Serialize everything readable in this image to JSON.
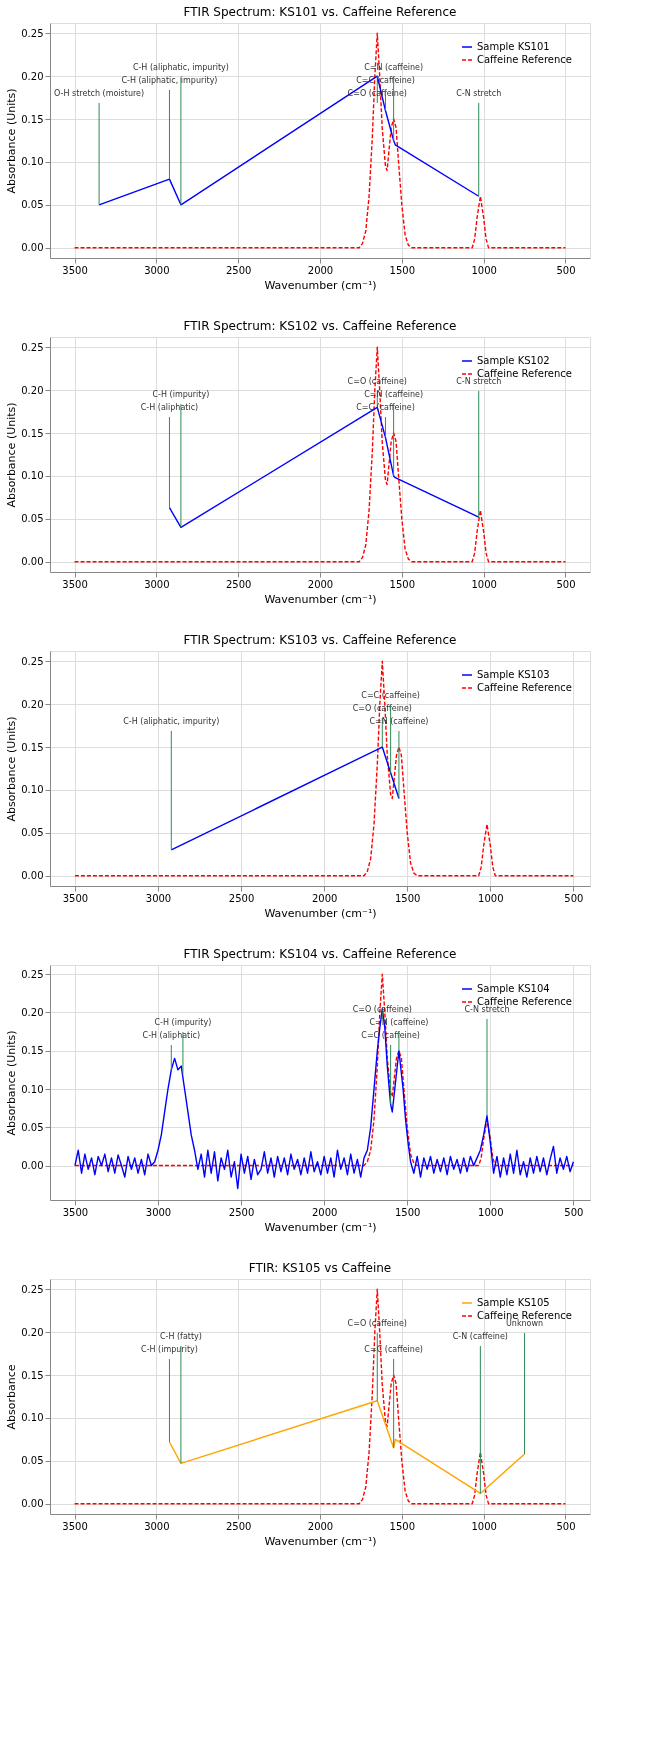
{
  "chart_data": [
    {
      "type": "line",
      "title": "FTIR Spectrum: KS101 vs. Caffeine Reference",
      "xlabel": "Wavenumber (cm⁻¹)",
      "ylabel": "Absorbance (Units)",
      "xlim": [
        3650,
        350
      ],
      "xticks": [
        3500,
        3000,
        2500,
        2000,
        1500,
        1000,
        500
      ],
      "ylim": [
        -0.012,
        0.262
      ],
      "yticks": [
        {
          "value": 0,
          "label": "0.00"
        },
        {
          "value": 0.05,
          "label": "0.05"
        },
        {
          "value": 0.1,
          "label": "0.10"
        },
        {
          "value": 0.15,
          "label": "0.15"
        },
        {
          "value": 0.2,
          "label": "0.20"
        },
        {
          "value": 0.25,
          "label": "0.25"
        }
      ],
      "grid": true,
      "legend": "top right",
      "series": [
        {
          "name": "Sample KS101",
          "color": "#0000ff",
          "line_style": "solid",
          "x": [
            3350,
            2920,
            2850,
            1650,
            1600,
            1550,
            1540,
            1030
          ],
          "values": [
            0.05,
            0.08,
            0.05,
            0.2,
            0.16,
            0.125,
            0.12,
            0.06
          ]
        },
        {
          "name": "Caffeine Reference",
          "color": "#ff0000",
          "line_style": "dashed",
          "x": [
            3500,
            1760,
            1740,
            1720,
            1700,
            1680,
            1665,
            1650,
            1635,
            1620,
            1600,
            1590,
            1580,
            1565,
            1550,
            1535,
            1520,
            1500,
            1480,
            1460,
            1440,
            1070,
            1055,
            1040,
            1020,
            1000,
            985,
            970,
            500
          ],
          "values": [
            0,
            0,
            0.005,
            0.02,
            0.06,
            0.13,
            0.2,
            0.25,
            0.2,
            0.14,
            0.095,
            0.09,
            0.11,
            0.14,
            0.15,
            0.14,
            0.1,
            0.05,
            0.015,
            0.003,
            0,
            0,
            0.01,
            0.035,
            0.06,
            0.035,
            0.01,
            0,
            0
          ]
        }
      ],
      "annotations": [
        {
          "text": "O-H stretch (moisture)",
          "x": 3350,
          "y": 0.05
        },
        {
          "text": "C-H (aliphatic, impurity)",
          "x": 2920,
          "y": 0.08
        },
        {
          "text": "C-H (aliphatic, impurity)",
          "x": 2850,
          "y": 0.05
        },
        {
          "text": "C=O (caffeine)",
          "x": 1650,
          "y": 0.2
        },
        {
          "text": "C=C (caffeine)",
          "x": 1600,
          "y": 0.16
        },
        {
          "text": "C=N (caffeine)",
          "x": 1550,
          "y": 0.125
        },
        {
          "text": "C-N stretch",
          "x": 1030,
          "y": 0.06
        }
      ]
    },
    {
      "type": "line",
      "title": "FTIR Spectrum: KS102 vs. Caffeine Reference",
      "xlabel": "Wavenumber (cm⁻¹)",
      "ylabel": "Absorbance (Units)",
      "xlim": [
        3650,
        350
      ],
      "xticks": [
        3500,
        3000,
        2500,
        2000,
        1500,
        1000,
        500
      ],
      "ylim": [
        -0.012,
        0.262
      ],
      "yticks": [
        {
          "value": 0,
          "label": "0.00"
        },
        {
          "value": 0.05,
          "label": "0.05"
        },
        {
          "value": 0.1,
          "label": "0.10"
        },
        {
          "value": 0.15,
          "label": "0.15"
        },
        {
          "value": 0.2,
          "label": "0.20"
        },
        {
          "value": 0.25,
          "label": "0.25"
        }
      ],
      "grid": true,
      "legend": "top right",
      "series": [
        {
          "name": "Sample KS102",
          "color": "#0000ff",
          "line_style": "solid",
          "x": [
            2920,
            2850,
            1650,
            1600,
            1550,
            1540,
            1030
          ],
          "values": [
            0.063,
            0.04,
            0.18,
            0.145,
            0.1,
            0.098,
            0.052
          ]
        },
        {
          "name": "Caffeine Reference",
          "color": "#ff0000",
          "line_style": "dashed",
          "x": [
            3500,
            1760,
            1740,
            1720,
            1700,
            1680,
            1665,
            1650,
            1635,
            1620,
            1600,
            1590,
            1580,
            1565,
            1550,
            1535,
            1520,
            1500,
            1480,
            1460,
            1440,
            1070,
            1055,
            1040,
            1020,
            1000,
            985,
            970,
            500
          ],
          "values": [
            0,
            0,
            0.005,
            0.02,
            0.06,
            0.13,
            0.2,
            0.25,
            0.2,
            0.14,
            0.095,
            0.09,
            0.11,
            0.14,
            0.15,
            0.14,
            0.1,
            0.05,
            0.015,
            0.003,
            0,
            0,
            0.01,
            0.035,
            0.06,
            0.035,
            0.01,
            0,
            0
          ]
        }
      ],
      "annotations": [
        {
          "text": "C-H (aliphatic)",
          "x": 2920,
          "y": 0.063
        },
        {
          "text": "C-H (impurity)",
          "x": 2850,
          "y": 0.04
        },
        {
          "text": "C=O (caffeine)",
          "x": 1650,
          "y": 0.18
        },
        {
          "text": "C=C (caffeine)",
          "x": 1600,
          "y": 0.145
        },
        {
          "text": "C=N (caffeine)",
          "x": 1550,
          "y": 0.1
        },
        {
          "text": "C-N stretch",
          "x": 1030,
          "y": 0.052
        }
      ]
    },
    {
      "type": "line",
      "title": "FTIR Spectrum: KS103 vs. Caffeine Reference",
      "xlabel": "Wavenumber (cm⁻¹)",
      "ylabel": "Absorbance (Units)",
      "xlim": [
        3650,
        400
      ],
      "xticks": [
        3500,
        3000,
        2500,
        2000,
        1500,
        1000,
        500
      ],
      "ylim": [
        -0.012,
        0.262
      ],
      "yticks": [
        {
          "value": 0,
          "label": "0.00"
        },
        {
          "value": 0.05,
          "label": "0.05"
        },
        {
          "value": 0.1,
          "label": "0.10"
        },
        {
          "value": 0.15,
          "label": "0.15"
        },
        {
          "value": 0.2,
          "label": "0.20"
        },
        {
          "value": 0.25,
          "label": "0.25"
        }
      ],
      "grid": true,
      "legend": "top right",
      "series": [
        {
          "name": "Sample KS103",
          "color": "#0000ff",
          "line_style": "solid",
          "x": [
            2920,
            1650,
            1600,
            1550
          ],
          "values": [
            0.03,
            0.15,
            0.12,
            0.09
          ]
        },
        {
          "name": "Caffeine Reference",
          "color": "#ff0000",
          "line_style": "dashed",
          "x": [
            3500,
            1760,
            1740,
            1720,
            1700,
            1680,
            1665,
            1650,
            1635,
            1620,
            1600,
            1590,
            1580,
            1565,
            1550,
            1535,
            1520,
            1500,
            1480,
            1460,
            1440,
            1070,
            1055,
            1040,
            1020,
            1000,
            985,
            970,
            500
          ],
          "values": [
            0,
            0,
            0.005,
            0.02,
            0.06,
            0.13,
            0.2,
            0.25,
            0.2,
            0.14,
            0.095,
            0.09,
            0.11,
            0.14,
            0.15,
            0.14,
            0.1,
            0.05,
            0.015,
            0.003,
            0,
            0,
            0.01,
            0.035,
            0.06,
            0.035,
            0.01,
            0,
            0
          ]
        }
      ],
      "annotations": [
        {
          "text": "C-H (aliphatic, impurity)",
          "x": 2920,
          "y": 0.03
        },
        {
          "text": "C=O (caffeine)",
          "x": 1650,
          "y": 0.15
        },
        {
          "text": "C=C (caffeine)",
          "x": 1600,
          "y": 0.12
        },
        {
          "text": "C=N (caffeine)",
          "x": 1550,
          "y": 0.09
        }
      ]
    },
    {
      "type": "line",
      "title": "FTIR Spectrum: KS104 vs. Caffeine Reference",
      "xlabel": "Wavenumber (cm⁻¹)",
      "ylabel": "Absorbance (Units)",
      "xlim": [
        3650,
        400
      ],
      "xticks": [
        3500,
        3000,
        2500,
        2000,
        1500,
        1000,
        500
      ],
      "ylim": [
        -0.045,
        0.262
      ],
      "yticks": [
        {
          "value": 0,
          "label": "0.00"
        },
        {
          "value": 0.05,
          "label": "0.05"
        },
        {
          "value": 0.1,
          "label": "0.10"
        },
        {
          "value": 0.15,
          "label": "0.15"
        },
        {
          "value": 0.2,
          "label": "0.20"
        },
        {
          "value": 0.25,
          "label": "0.25"
        }
      ],
      "grid": true,
      "legend": "top right",
      "series": [
        {
          "name": "Sample KS104",
          "color": "#0000ff",
          "line_style": "solid",
          "x": [
            3500,
            3480,
            3460,
            3440,
            3420,
            3400,
            3380,
            3360,
            3340,
            3320,
            3300,
            3280,
            3260,
            3240,
            3220,
            3200,
            3180,
            3160,
            3140,
            3120,
            3100,
            3080,
            3060,
            3040,
            3020,
            3000,
            2980,
            2960,
            2940,
            2920,
            2900,
            2880,
            2860,
            2840,
            2820,
            2800,
            2780,
            2760,
            2740,
            2720,
            2700,
            2680,
            2660,
            2640,
            2620,
            2600,
            2580,
            2560,
            2540,
            2520,
            2500,
            2480,
            2460,
            2440,
            2420,
            2400,
            2380,
            2360,
            2340,
            2320,
            2300,
            2280,
            2260,
            2240,
            2220,
            2200,
            2180,
            2160,
            2140,
            2120,
            2100,
            2080,
            2060,
            2040,
            2020,
            2000,
            1980,
            1960,
            1940,
            1920,
            1900,
            1880,
            1860,
            1840,
            1820,
            1800,
            1780,
            1760,
            1740,
            1720,
            1700,
            1680,
            1665,
            1650,
            1635,
            1620,
            1600,
            1590,
            1575,
            1560,
            1550,
            1540,
            1525,
            1510,
            1495,
            1480,
            1460,
            1440,
            1420,
            1400,
            1380,
            1360,
            1340,
            1320,
            1300,
            1280,
            1260,
            1240,
            1220,
            1200,
            1180,
            1160,
            1140,
            1120,
            1100,
            1080,
            1060,
            1040,
            1020,
            1000,
            980,
            960,
            940,
            920,
            900,
            880,
            860,
            840,
            820,
            800,
            780,
            760,
            740,
            720,
            700,
            680,
            660,
            640,
            620,
            600,
            580,
            560,
            540,
            520,
            500
          ],
          "values": [
            0.0,
            0.02,
            -0.01,
            0.015,
            -0.005,
            0.01,
            -0.012,
            0.012,
            0.0,
            0.015,
            -0.008,
            0.01,
            -0.01,
            0.014,
            0.0,
            -0.015,
            0.012,
            -0.005,
            0.01,
            -0.01,
            0.008,
            -0.012,
            0.015,
            0.0,
            0.005,
            0.02,
            0.04,
            0.07,
            0.1,
            0.125,
            0.14,
            0.125,
            0.13,
            0.1,
            0.07,
            0.04,
            0.02,
            -0.005,
            0.015,
            -0.015,
            0.02,
            -0.01,
            0.018,
            -0.02,
            0.01,
            -0.005,
            0.02,
            -0.015,
            0.005,
            -0.03,
            0.015,
            -0.01,
            0.012,
            -0.018,
            0.008,
            -0.012,
            -0.005,
            0.018,
            -0.01,
            0.01,
            -0.015,
            0.012,
            -0.008,
            0.01,
            -0.012,
            0.015,
            -0.005,
            0.008,
            -0.012,
            0.01,
            -0.01,
            0.018,
            -0.008,
            0.005,
            -0.012,
            0.012,
            -0.01,
            0.01,
            -0.015,
            0.02,
            -0.005,
            0.01,
            -0.012,
            0.015,
            -0.01,
            0.008,
            -0.015,
            0.01,
            0.02,
            0.05,
            0.1,
            0.15,
            0.18,
            0.205,
            0.18,
            0.13,
            0.08,
            0.07,
            0.1,
            0.13,
            0.15,
            0.13,
            0.1,
            0.06,
            0.03,
            0.005,
            -0.01,
            0.012,
            -0.015,
            0.01,
            -0.005,
            0.012,
            -0.01,
            0.008,
            -0.008,
            0.01,
            -0.012,
            0.012,
            -0.005,
            0.008,
            -0.01,
            0.01,
            -0.008,
            0.012,
            0.0,
            0.01,
            0.02,
            0.04,
            0.065,
            0.03,
            -0.01,
            0.012,
            -0.015,
            0.01,
            -0.012,
            0.015,
            -0.01,
            0.02,
            -0.012,
            0.005,
            -0.015,
            0.01,
            -0.01,
            0.012,
            -0.008,
            0.01,
            -0.012,
            0.008,
            0.025,
            -0.01,
            0.01,
            -0.005,
            0.012,
            -0.008,
            0.005
          ]
        },
        {
          "name": "Caffeine Reference",
          "color": "#ff0000",
          "line_style": "dashed",
          "x": [
            3500,
            1760,
            1740,
            1720,
            1700,
            1680,
            1665,
            1650,
            1635,
            1620,
            1600,
            1590,
            1580,
            1565,
            1550,
            1535,
            1520,
            1500,
            1480,
            1460,
            1440,
            1070,
            1055,
            1040,
            1020,
            1000,
            985,
            970,
            500
          ],
          "values": [
            0,
            0,
            0.005,
            0.02,
            0.06,
            0.13,
            0.2,
            0.25,
            0.2,
            0.14,
            0.095,
            0.09,
            0.11,
            0.14,
            0.15,
            0.14,
            0.1,
            0.05,
            0.015,
            0.003,
            0,
            0,
            0.01,
            0.035,
            0.06,
            0.035,
            0.01,
            0,
            0
          ]
        }
      ],
      "annotations": [
        {
          "text": "C-H (aliphatic)",
          "x": 2920,
          "y": 0.125
        },
        {
          "text": "C-H (impurity)",
          "x": 2850,
          "y": 0.12
        },
        {
          "text": "C=O (caffeine)",
          "x": 1650,
          "y": 0.205
        },
        {
          "text": "C=C (caffeine)",
          "x": 1600,
          "y": 0.08
        },
        {
          "text": "C=N (caffeine)",
          "x": 1550,
          "y": 0.15
        },
        {
          "text": "C-N stretch",
          "x": 1020,
          "y": 0.065
        }
      ]
    },
    {
      "type": "line",
      "title": "FTIR: KS105 vs Caffeine",
      "xlabel": "Wavenumber (cm⁻¹)",
      "ylabel": "Absorbance",
      "xlim": [
        3650,
        350
      ],
      "xticks": [
        3500,
        3000,
        2500,
        2000,
        1500,
        1000,
        500
      ],
      "ylim": [
        -0.012,
        0.262
      ],
      "yticks": [
        {
          "value": 0,
          "label": "0.00"
        },
        {
          "value": 0.05,
          "label": "0.05"
        },
        {
          "value": 0.1,
          "label": "0.10"
        },
        {
          "value": 0.15,
          "label": "0.15"
        },
        {
          "value": 0.2,
          "label": "0.20"
        },
        {
          "value": 0.25,
          "label": "0.25"
        }
      ],
      "grid": true,
      "legend": "top right",
      "series": [
        {
          "name": "Sample KS105",
          "color": "#ffa500",
          "line_style": "solid",
          "x": [
            2920,
            2850,
            1650,
            1550,
            1540,
            1020,
            750
          ],
          "values": [
            0.072,
            0.047,
            0.12,
            0.065,
            0.075,
            0.012,
            0.058
          ]
        },
        {
          "name": "Caffeine Reference",
          "color": "#ff0000",
          "line_style": "dashed",
          "x": [
            3500,
            1760,
            1740,
            1720,
            1700,
            1680,
            1665,
            1650,
            1635,
            1620,
            1600,
            1590,
            1580,
            1565,
            1550,
            1535,
            1520,
            1500,
            1480,
            1460,
            1440,
            1070,
            1055,
            1040,
            1020,
            1000,
            985,
            970,
            500
          ],
          "values": [
            0,
            0,
            0.005,
            0.02,
            0.06,
            0.13,
            0.2,
            0.25,
            0.2,
            0.14,
            0.095,
            0.09,
            0.11,
            0.14,
            0.15,
            0.14,
            0.1,
            0.05,
            0.015,
            0.003,
            0,
            0,
            0.01,
            0.035,
            0.06,
            0.035,
            0.01,
            0,
            0
          ]
        }
      ],
      "annotations": [
        {
          "text": "C-H (impurity)",
          "x": 2920,
          "y": 0.072
        },
        {
          "text": "C-H (fatty)",
          "x": 2850,
          "y": 0.047
        },
        {
          "text": "C=O (caffeine)",
          "x": 1650,
          "y": 0.12
        },
        {
          "text": "C=C (caffeine)",
          "x": 1550,
          "y": 0.065
        },
        {
          "text": "C-N (caffeine)",
          "x": 1020,
          "y": 0.012
        },
        {
          "text": "Unknown",
          "x": 750,
          "y": 0.058
        }
      ]
    }
  ]
}
